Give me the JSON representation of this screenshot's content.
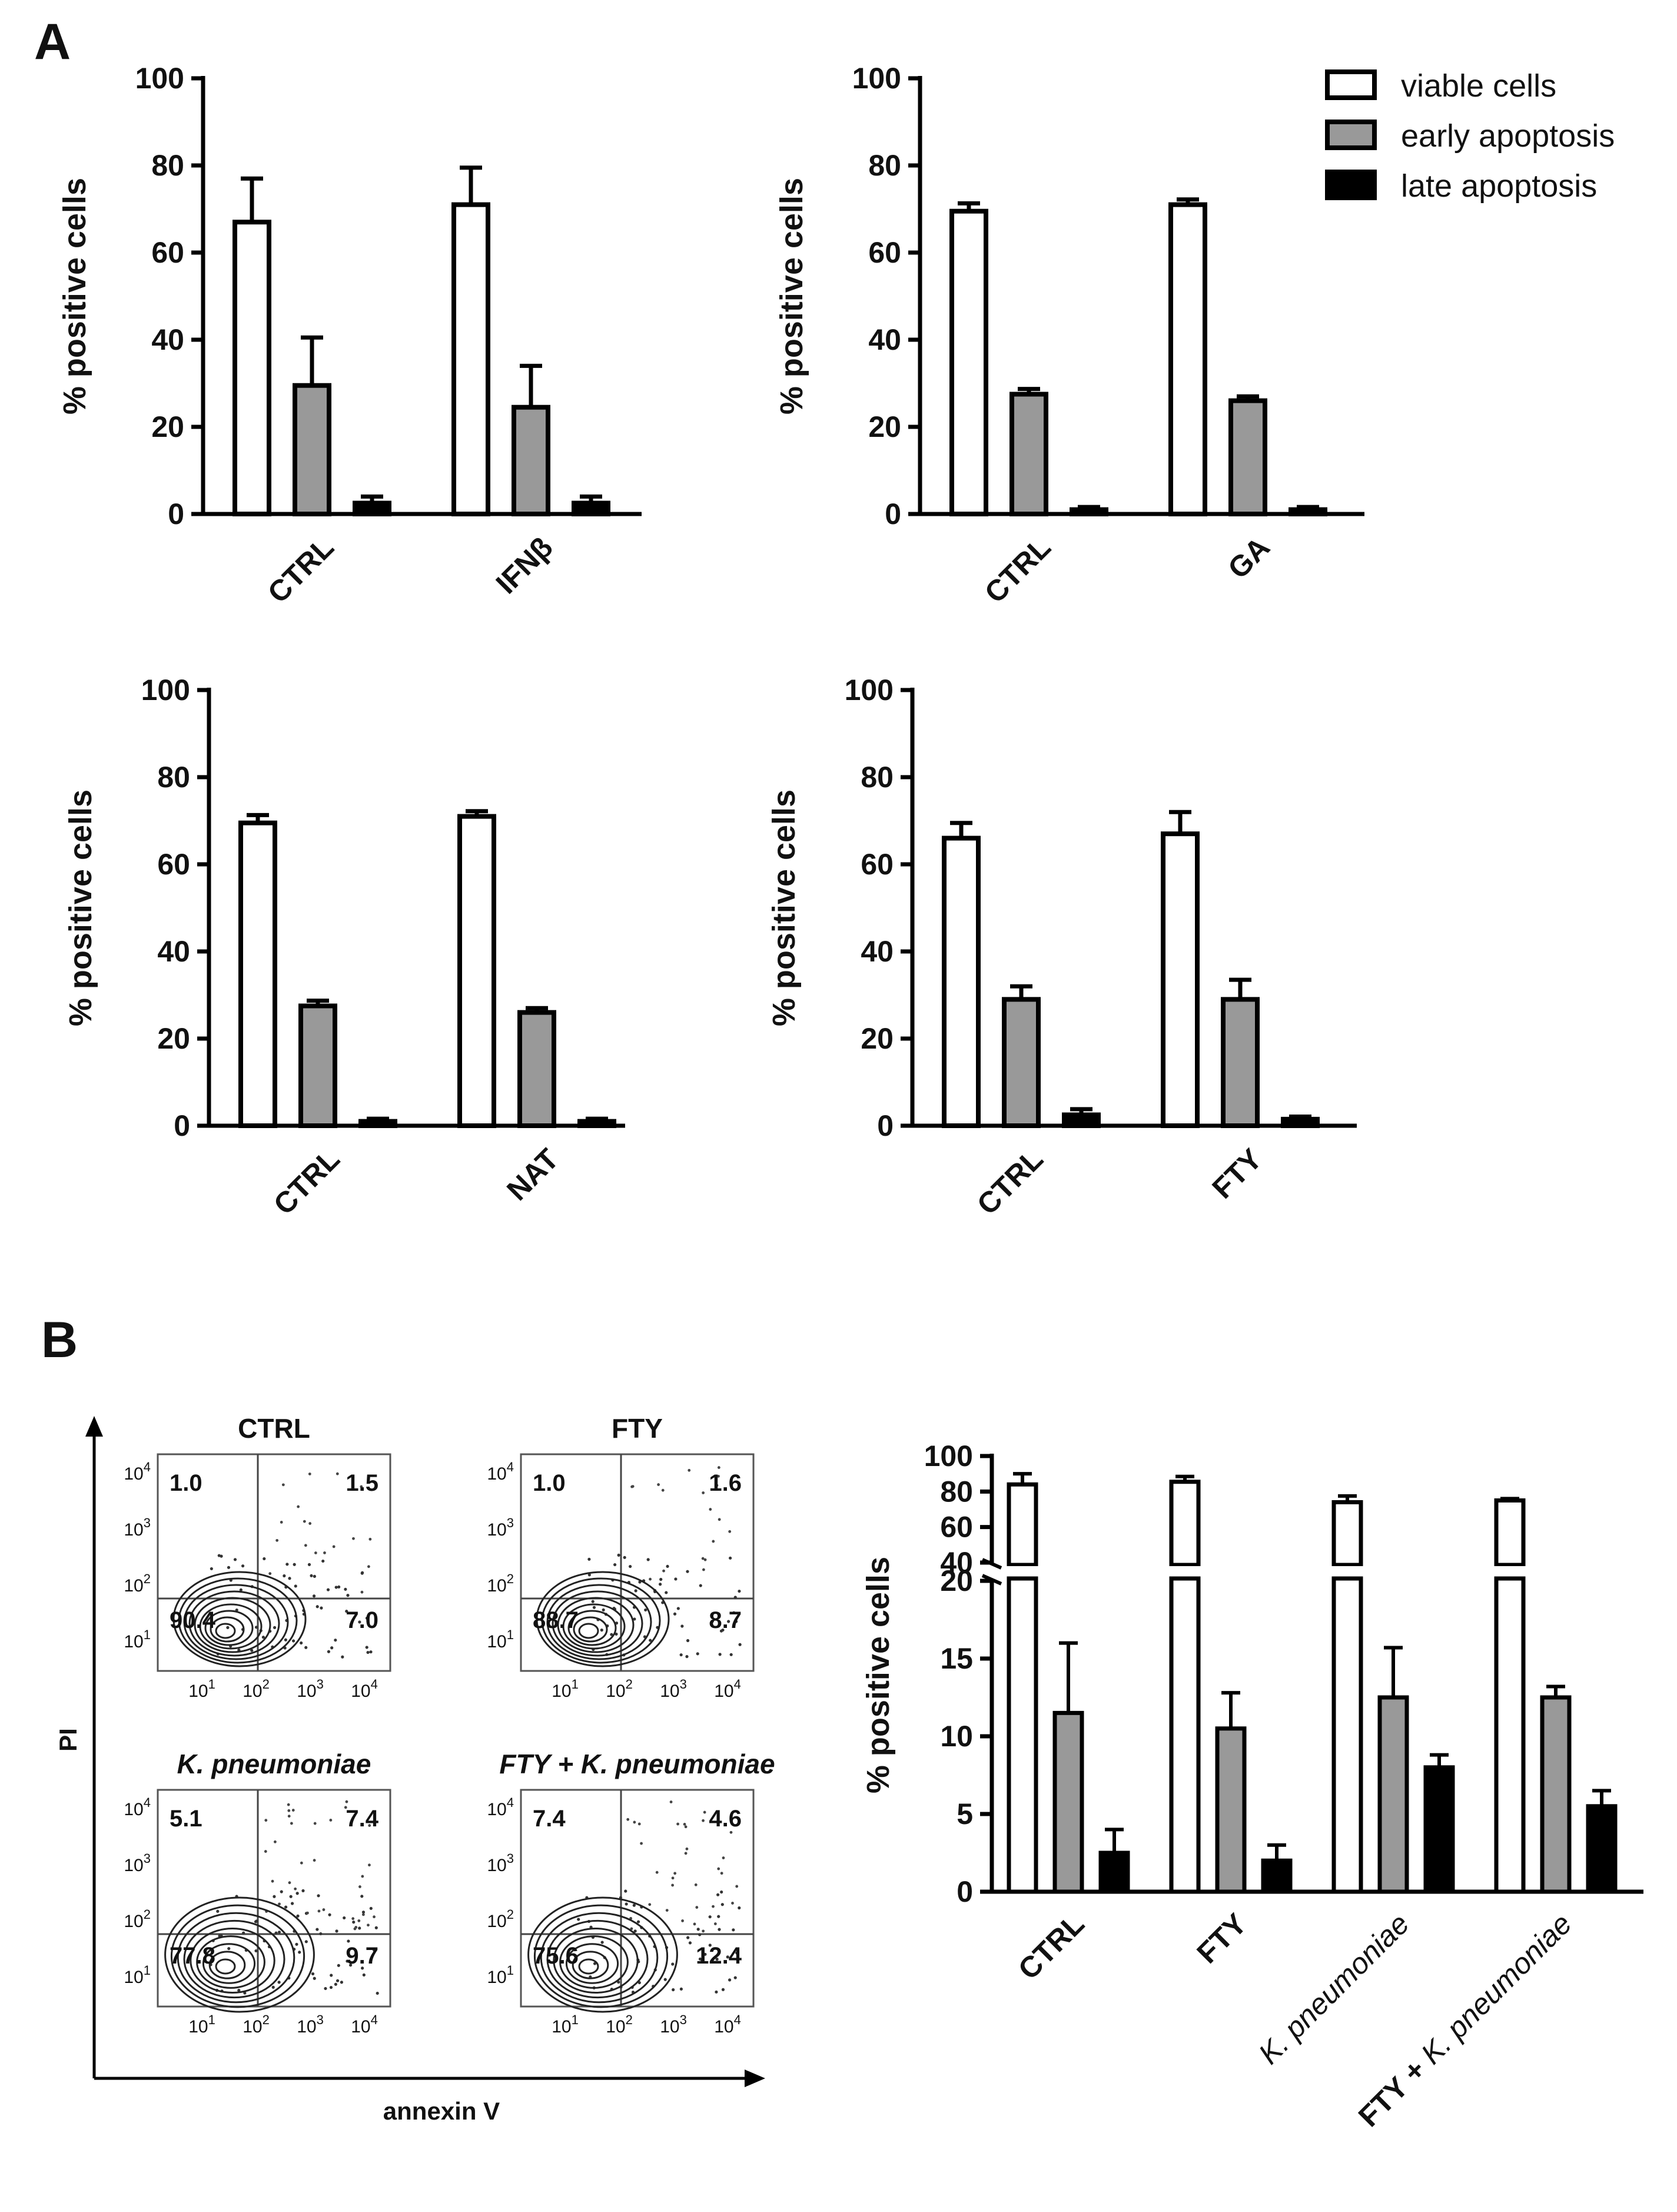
{
  "panel_labels": {
    "a": "A",
    "b": "B"
  },
  "legend": {
    "items": [
      {
        "label": "viable cells",
        "color": "#ffffff"
      },
      {
        "label": "early apoptosis",
        "color": "#999999"
      },
      {
        "label": "late apoptosis",
        "color": "#000000"
      }
    ]
  },
  "chart_data": [
    {
      "id": "A1",
      "type": "bar",
      "ylabel": "% positive cells",
      "ylim": [
        0,
        100
      ],
      "yticks": [
        0,
        20,
        40,
        60,
        80,
        100
      ],
      "categories": [
        "CTRL",
        "IFNβ"
      ],
      "series": [
        {
          "name": "viable cells",
          "values": [
            67,
            71
          ],
          "errors": [
            10,
            8.5
          ]
        },
        {
          "name": "early apoptosis",
          "values": [
            29.5,
            24.5
          ],
          "errors": [
            11,
            9.5
          ]
        },
        {
          "name": "late apoptosis",
          "values": [
            2.5,
            2.5
          ],
          "errors": [
            1.5,
            1.5
          ]
        }
      ]
    },
    {
      "id": "A2",
      "type": "bar",
      "ylabel": "% positive cells",
      "ylim": [
        0,
        100
      ],
      "yticks": [
        0,
        20,
        40,
        60,
        80,
        100
      ],
      "categories": [
        "CTRL",
        "GA"
      ],
      "series": [
        {
          "name": "viable cells",
          "values": [
            69.5,
            71
          ],
          "errors": [
            1.8,
            1.2
          ]
        },
        {
          "name": "early apoptosis",
          "values": [
            27.5,
            26
          ],
          "errors": [
            1.2,
            1
          ]
        },
        {
          "name": "late apoptosis",
          "values": [
            1,
            1
          ],
          "errors": [
            0.6,
            0.6
          ]
        }
      ]
    },
    {
      "id": "A3",
      "type": "bar",
      "ylabel": "% positive cells",
      "ylim": [
        0,
        100
      ],
      "yticks": [
        0,
        20,
        40,
        60,
        80,
        100
      ],
      "categories": [
        "CTRL",
        "NAT"
      ],
      "series": [
        {
          "name": "viable cells",
          "values": [
            69.5,
            71
          ],
          "errors": [
            1.8,
            1.2
          ]
        },
        {
          "name": "early apoptosis",
          "values": [
            27.5,
            26
          ],
          "errors": [
            1.2,
            1
          ]
        },
        {
          "name": "late apoptosis",
          "values": [
            1,
            1
          ],
          "errors": [
            0.6,
            0.6
          ]
        }
      ]
    },
    {
      "id": "A4",
      "type": "bar",
      "ylabel": "% positive cells",
      "ylim": [
        0,
        100
      ],
      "yticks": [
        0,
        20,
        40,
        60,
        80,
        100
      ],
      "categories": [
        "CTRL",
        "FTY"
      ],
      "series": [
        {
          "name": "viable cells",
          "values": [
            66,
            67
          ],
          "errors": [
            3.5,
            5
          ]
        },
        {
          "name": "early apoptosis",
          "values": [
            29,
            29
          ],
          "errors": [
            3,
            4.5
          ]
        },
        {
          "name": "late apoptosis",
          "values": [
            2.5,
            1.5
          ],
          "errors": [
            1.3,
            0.6
          ]
        }
      ]
    },
    {
      "id": "B",
      "type": "bar",
      "ylabel": "% positive cells",
      "axis_break": {
        "lower": [
          0,
          20
        ],
        "upper": [
          40,
          100
        ]
      },
      "yticks_lower": [
        0,
        5,
        10,
        15,
        20
      ],
      "yticks_upper": [
        40,
        60,
        80,
        100
      ],
      "categories": [
        "CTRL",
        "FTY",
        "K. pneumoniae",
        "FTY + K. pneumoniae"
      ],
      "series": [
        {
          "name": "viable cells",
          "values": [
            84,
            85.5,
            74,
            75
          ],
          "errors": [
            6,
            3,
            3.5,
            1
          ]
        },
        {
          "name": "early apoptosis",
          "values": [
            11.5,
            10.5,
            12.5,
            12.5
          ],
          "errors": [
            4.5,
            2.3,
            3.2,
            0.7
          ]
        },
        {
          "name": "late apoptosis",
          "values": [
            2.5,
            2,
            8,
            5.5
          ],
          "errors": [
            1.5,
            1,
            0.8,
            1
          ]
        }
      ]
    }
  ],
  "flow": {
    "y_axis_label": "PI",
    "x_axis_label": "annexin V",
    "tick_base": "10",
    "tick_exponents": [
      "1",
      "2",
      "3",
      "4"
    ],
    "plots": [
      {
        "title": "CTRL",
        "italic": false,
        "ul": "1.0",
        "ur": "1.5",
        "ll": "90.4",
        "lr": "7.0"
      },
      {
        "title": "FTY",
        "italic": false,
        "ul": "1.0",
        "ur": "1.6",
        "ll": "88.7",
        "lr": "8.7"
      },
      {
        "title": "K. pneumoniae",
        "italic": true,
        "ul": "5.1",
        "ur": "7.4",
        "ll": "77.8",
        "lr": "9.7"
      },
      {
        "title": "FTY + K. pneumoniae",
        "italic": true,
        "ul": "7.4",
        "ur": "4.6",
        "ll": "75.6",
        "lr": "12.4"
      }
    ]
  }
}
